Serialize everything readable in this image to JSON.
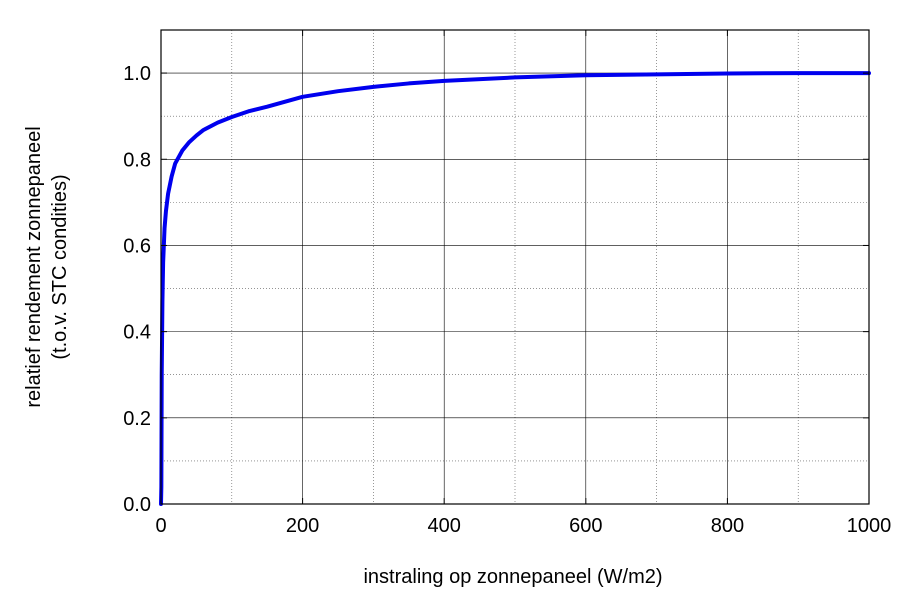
{
  "chart_data": {
    "type": "line",
    "xlabel": "instraling op zonnepaneel (W/m2)",
    "ylabel": [
      "relatief rendement zonnepaneel",
      "(t.o.v. STC condities)"
    ],
    "xlim": [
      0,
      1000
    ],
    "ylim": [
      0,
      1.1
    ],
    "xticks": [
      0,
      200,
      400,
      600,
      800,
      1000
    ],
    "xtick_labels": [
      "0",
      "200",
      "400",
      "600",
      "800",
      "1000"
    ],
    "yticks": [
      0,
      0.2,
      0.4,
      0.6,
      0.8,
      1.0
    ],
    "ytick_labels": [
      "0.0",
      "0.2",
      "0.4",
      "0.6",
      "0.8",
      "1.0"
    ],
    "grid": {
      "major": true,
      "minor": true
    },
    "series": [
      {
        "color": "#0000ee",
        "x": [
          0.5,
          1,
          2,
          3,
          5,
          7,
          10,
          15,
          20,
          30,
          40,
          50,
          60,
          80,
          100,
          125,
          150,
          200,
          250,
          300,
          350,
          400,
          500,
          600,
          700,
          800,
          900,
          1000
        ],
        "y": [
          0.04,
          0.3,
          0.47,
          0.56,
          0.64,
          0.68,
          0.72,
          0.76,
          0.79,
          0.82,
          0.84,
          0.855,
          0.868,
          0.885,
          0.898,
          0.912,
          0.922,
          0.945,
          0.958,
          0.968,
          0.976,
          0.982,
          0.99,
          0.995,
          0.997,
          0.999,
          1.0,
          1.0
        ]
      }
    ]
  }
}
